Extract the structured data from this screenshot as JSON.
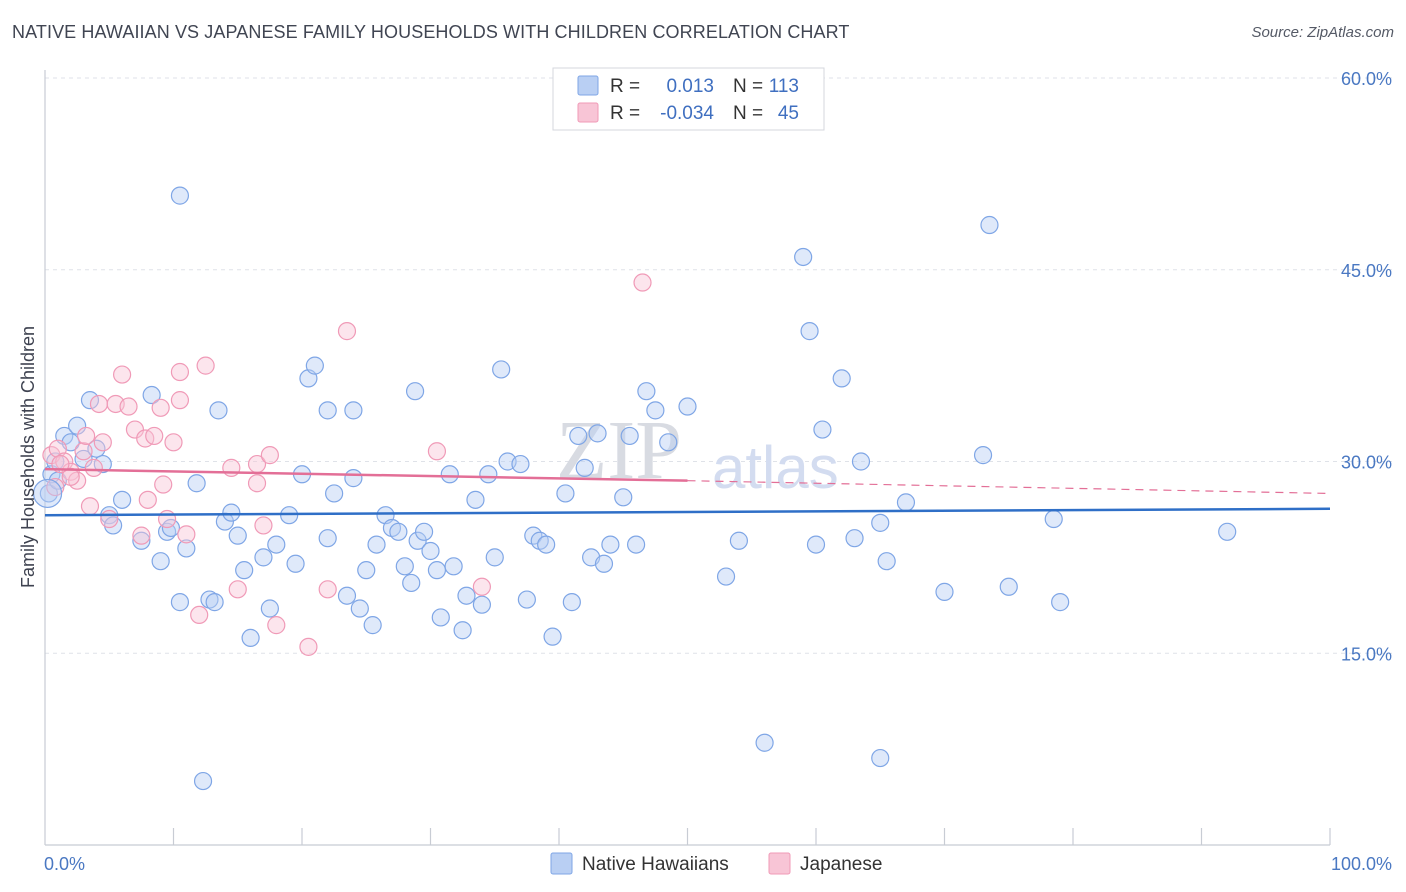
{
  "title": "NATIVE HAWAIIAN VS JAPANESE FAMILY HOUSEHOLDS WITH CHILDREN CORRELATION CHART",
  "source": "Source: ZipAtlas.com",
  "watermark": {
    "zip": "ZIP",
    "atlas": "atlas"
  },
  "chart_data": {
    "type": "scatter",
    "title": "NATIVE HAWAIIAN VS JAPANESE FAMILY HOUSEHOLDS WITH CHILDREN CORRELATION CHART",
    "xlabel": "",
    "ylabel": "Family Households with Children",
    "xlim": [
      0,
      100
    ],
    "ylim": [
      0,
      60
    ],
    "y_ticks": [
      15,
      30,
      45,
      60
    ],
    "y_tick_labels": [
      "15.0%",
      "30.0%",
      "45.0%",
      "60.0%"
    ],
    "x_tick_labels": [
      "0.0%",
      "100.0%"
    ],
    "legend": [
      {
        "name": "Native Hawaiians",
        "r_label": "R =",
        "r": "0.013",
        "n_label": "N =",
        "n": "113",
        "color": "#7fa6e6",
        "fill": "#b9cff3"
      },
      {
        "name": "Japanese",
        "r_label": "R =",
        "r": "-0.034",
        "n_label": "N =",
        "n": "45",
        "color": "#f09ab7",
        "fill": "#f8c5d6"
      }
    ],
    "series": [
      {
        "name": "Native Hawaiians",
        "color": "#7fa6e6",
        "trend": {
          "x0": 0,
          "y0": 25.8,
          "x1": 100,
          "y1": 26.3,
          "color": "#2f6fc7"
        },
        "points": [
          [
            0.3,
            27.5
          ],
          [
            0.5,
            29.0
          ],
          [
            0.8,
            30.0
          ],
          [
            1.0,
            28.5
          ],
          [
            1.5,
            32.0
          ],
          [
            2.0,
            31.5
          ],
          [
            2.5,
            32.8
          ],
          [
            3.0,
            30.2
          ],
          [
            3.5,
            34.8
          ],
          [
            4.0,
            31.0
          ],
          [
            4.5,
            29.8
          ],
          [
            5.0,
            25.8
          ],
          [
            5.3,
            25.0
          ],
          [
            6.0,
            27.0
          ],
          [
            7.5,
            23.8
          ],
          [
            8.3,
            35.2
          ],
          [
            9.0,
            22.2
          ],
          [
            9.5,
            24.5
          ],
          [
            9.8,
            24.8
          ],
          [
            10.5,
            19.0
          ],
          [
            11.0,
            23.2
          ],
          [
            10.5,
            50.8
          ],
          [
            11.8,
            28.3
          ],
          [
            12.3,
            5.0
          ],
          [
            12.8,
            19.2
          ],
          [
            13.2,
            19.0
          ],
          [
            13.5,
            34.0
          ],
          [
            14.0,
            25.3
          ],
          [
            14.5,
            26.0
          ],
          [
            15.0,
            24.2
          ],
          [
            15.5,
            21.5
          ],
          [
            16.0,
            16.2
          ],
          [
            17.0,
            22.5
          ],
          [
            17.5,
            18.5
          ],
          [
            18.0,
            23.5
          ],
          [
            19.0,
            25.8
          ],
          [
            19.5,
            22.0
          ],
          [
            20.0,
            29.0
          ],
          [
            20.5,
            36.5
          ],
          [
            21.0,
            37.5
          ],
          [
            22.0,
            34.0
          ],
          [
            22.5,
            27.5
          ],
          [
            22.0,
            24.0
          ],
          [
            23.5,
            19.5
          ],
          [
            24.0,
            28.7
          ],
          [
            24.5,
            18.5
          ],
          [
            24.0,
            34.0
          ],
          [
            25.0,
            21.5
          ],
          [
            25.5,
            17.2
          ],
          [
            25.8,
            23.5
          ],
          [
            26.5,
            25.8
          ],
          [
            27.0,
            24.8
          ],
          [
            27.5,
            24.5
          ],
          [
            28.0,
            21.8
          ],
          [
            28.5,
            20.5
          ],
          [
            28.8,
            35.5
          ],
          [
            29.0,
            23.8
          ],
          [
            29.5,
            24.5
          ],
          [
            30.0,
            23.0
          ],
          [
            30.5,
            21.5
          ],
          [
            30.8,
            17.8
          ],
          [
            31.5,
            29.0
          ],
          [
            31.8,
            21.8
          ],
          [
            32.5,
            16.8
          ],
          [
            32.8,
            19.5
          ],
          [
            33.5,
            27.0
          ],
          [
            34.0,
            18.8
          ],
          [
            34.5,
            29.0
          ],
          [
            35.0,
            22.5
          ],
          [
            35.5,
            37.2
          ],
          [
            36.0,
            30.0
          ],
          [
            37.0,
            29.8
          ],
          [
            37.5,
            19.2
          ],
          [
            38.0,
            24.2
          ],
          [
            38.5,
            23.8
          ],
          [
            39.0,
            23.5
          ],
          [
            39.5,
            16.3
          ],
          [
            40.5,
            27.5
          ],
          [
            41.0,
            19.0
          ],
          [
            41.5,
            32.0
          ],
          [
            42.0,
            29.5
          ],
          [
            42.5,
            22.5
          ],
          [
            43.0,
            32.2
          ],
          [
            43.5,
            22.0
          ],
          [
            44.0,
            23.5
          ],
          [
            45.0,
            27.2
          ],
          [
            45.5,
            32.0
          ],
          [
            46.0,
            23.5
          ],
          [
            46.8,
            35.5
          ],
          [
            47.5,
            34.0
          ],
          [
            48.5,
            31.5
          ],
          [
            50.0,
            34.3
          ],
          [
            53.0,
            21.0
          ],
          [
            54.0,
            23.8
          ],
          [
            56.0,
            8.0
          ],
          [
            59.0,
            46.0
          ],
          [
            59.5,
            40.2
          ],
          [
            60.0,
            23.5
          ],
          [
            60.5,
            32.5
          ],
          [
            62.0,
            36.5
          ],
          [
            63.0,
            24.0
          ],
          [
            63.5,
            30.0
          ],
          [
            65.0,
            6.8
          ],
          [
            65.0,
            25.2
          ],
          [
            65.5,
            22.2
          ],
          [
            67.0,
            26.8
          ],
          [
            70.0,
            19.8
          ],
          [
            73.0,
            30.5
          ],
          [
            73.5,
            48.5
          ],
          [
            75.0,
            20.2
          ],
          [
            78.5,
            25.5
          ],
          [
            79.0,
            19.0
          ],
          [
            92.0,
            24.5
          ]
        ]
      },
      {
        "name": "Japanese",
        "color": "#f09ab7",
        "trend": {
          "x0": 0,
          "y0": 29.4,
          "x1": 50,
          "y1": 28.5,
          "x2": 100,
          "y2": 27.5,
          "color": "#e36f97"
        },
        "points": [
          [
            0.5,
            30.5
          ],
          [
            1.0,
            31.0
          ],
          [
            1.5,
            30.0
          ],
          [
            2.0,
            29.2
          ],
          [
            2.5,
            28.5
          ],
          [
            3.0,
            30.8
          ],
          [
            3.5,
            26.5
          ],
          [
            3.8,
            29.5
          ],
          [
            4.2,
            34.5
          ],
          [
            4.5,
            31.5
          ],
          [
            5.0,
            25.5
          ],
          [
            5.5,
            34.5
          ],
          [
            6.0,
            36.8
          ],
          [
            6.5,
            34.3
          ],
          [
            7.0,
            32.5
          ],
          [
            7.5,
            24.2
          ],
          [
            7.8,
            31.8
          ],
          [
            8.5,
            32.0
          ],
          [
            9.0,
            34.2
          ],
          [
            9.5,
            25.5
          ],
          [
            9.2,
            28.2
          ],
          [
            10.0,
            31.5
          ],
          [
            10.5,
            37.0
          ],
          [
            10.5,
            34.8
          ],
          [
            11.0,
            24.3
          ],
          [
            12.0,
            18.0
          ],
          [
            12.5,
            37.5
          ],
          [
            14.5,
            29.5
          ],
          [
            15.0,
            20.0
          ],
          [
            16.5,
            28.3
          ],
          [
            16.5,
            29.8
          ],
          [
            17.0,
            25.0
          ],
          [
            17.5,
            30.5
          ],
          [
            18.0,
            17.2
          ],
          [
            20.5,
            15.5
          ],
          [
            22.0,
            20.0
          ],
          [
            23.5,
            40.2
          ],
          [
            30.5,
            30.8
          ],
          [
            34.0,
            20.2
          ],
          [
            46.5,
            44.0
          ],
          [
            2.0,
            28.8
          ],
          [
            1.2,
            29.8
          ],
          [
            3.2,
            32.0
          ],
          [
            8.0,
            27.0
          ],
          [
            0.8,
            28.0
          ]
        ]
      }
    ]
  }
}
